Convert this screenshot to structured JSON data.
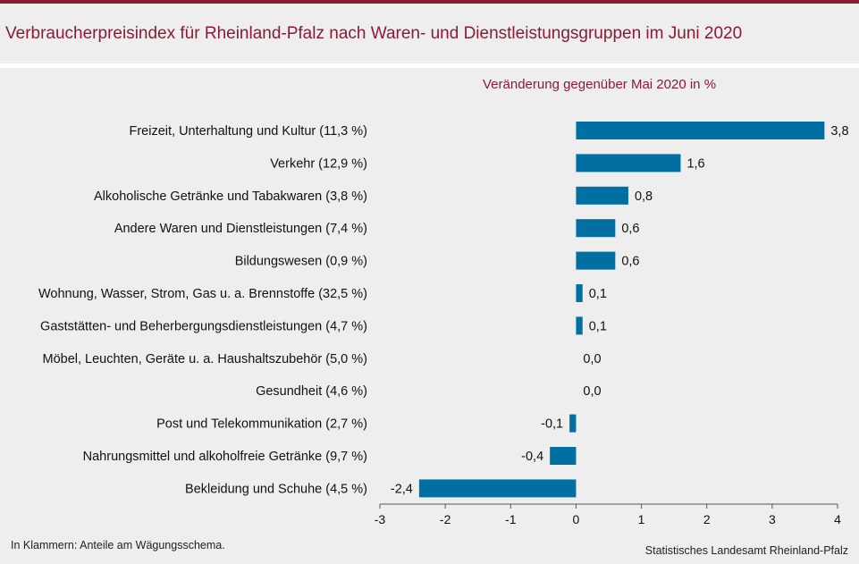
{
  "title": "Verbraucherpreisindex für Rheinland-Pfalz nach Waren- und Dienstleistungsgruppen im Juni 2020",
  "subtitle": "Veränderung  gegenüber  Mai 2020 in %",
  "footnote": "In Klammern:  Anteile am Wägungsschema.",
  "source": "Statistisches Landesamt Rheinland-Pfalz",
  "colors": {
    "bar": "#0070a3",
    "accent": "#8b1a35",
    "background": "#eeeeee"
  },
  "chart_data": {
    "type": "bar",
    "orientation": "horizontal",
    "categories": [
      "Freizeit, Unterhaltung und Kultur (11,3 %)",
      "Verkehr (12,9 %)",
      "Alkoholische Getränke und Tabakwaren (3,8 %)",
      "Andere Waren und Dienstleistungen (7,4 %)",
      "Bildungswesen (0,9 %)",
      "Wohnung, Wasser, Strom, Gas u. a. Brennstoffe (32,5 %)",
      "Gaststätten- und Beherbergungsdienstleistungen (4,7 %)",
      "Möbel, Leuchten, Geräte u. a. Haushaltszubehör (5,0 %)",
      "Gesundheit (4,6 %)",
      "Post und Telekommunikation (2,7 %)",
      "Nahrungsmittel und alkoholfreie Getränke (9,7 %)",
      "Bekleidung und Schuhe (4,5 %)"
    ],
    "values": [
      3.8,
      1.6,
      0.8,
      0.6,
      0.6,
      0.1,
      0.1,
      0.0,
      0.0,
      -0.1,
      -0.4,
      -2.4
    ],
    "value_labels": [
      "3,8",
      "1,6",
      "0,8",
      "0,6",
      "0,6",
      "0,1",
      "0,1",
      "0,0",
      "0,0",
      "-0,1",
      "-0,4",
      "-2,4"
    ],
    "xlim": [
      -3,
      4
    ],
    "xticks": [
      -3,
      -2,
      -1,
      0,
      1,
      2,
      3,
      4
    ],
    "grid": false,
    "legend": "none"
  }
}
